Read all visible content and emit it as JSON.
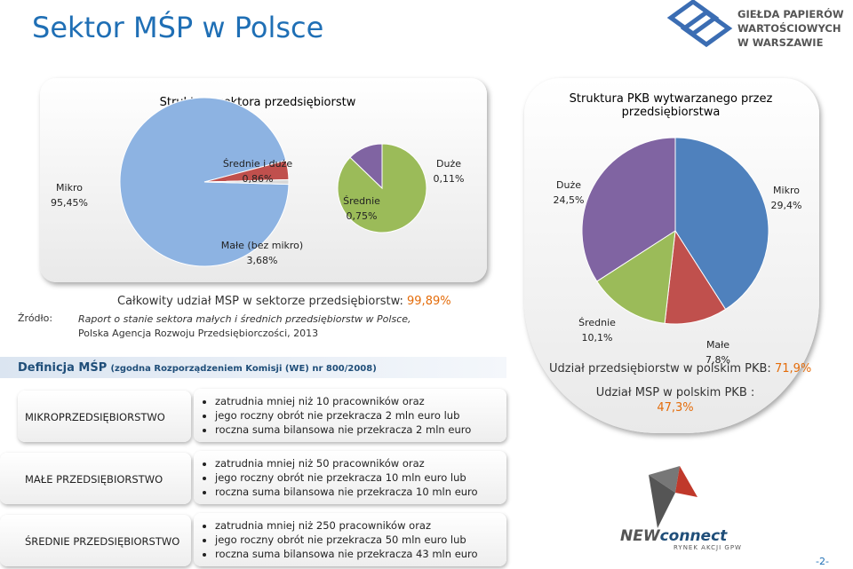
{
  "header": {
    "title": "Sektor MŚP w Polsce",
    "logo_lines": [
      "GIEŁDA PAPIERÓW",
      "WARTOŚCIOWYCH",
      "W WARSZAWIE"
    ]
  },
  "chart_data": [
    {
      "type": "pie",
      "title": "Struktura sektora przedsiębiorstw",
      "categories": [
        "Mikro",
        "Małe (bez mikro)",
        "Średnie i duże"
      ],
      "values": [
        95.45,
        3.68,
        0.86
      ],
      "value_labels": [
        "95,45%",
        "3,68%",
        "0,86%"
      ],
      "colors": [
        "#8db3e2",
        "#c0504d",
        "#d9d9d9"
      ],
      "breakdown": {
        "categories": [
          "Średnie",
          "Duże"
        ],
        "values": [
          0.75,
          0.11
        ],
        "value_labels": [
          "0,75%",
          "0,11%"
        ],
        "colors": [
          "#9bbb59",
          "#8064a2"
        ]
      }
    },
    {
      "type": "pie",
      "title": "Struktura PKB wytwarzanego przez przedsiębiorstwa",
      "categories": [
        "Mikro",
        "Małe",
        "Średnie",
        "Duże"
      ],
      "values": [
        29.4,
        7.8,
        10.1,
        24.5
      ],
      "value_labels": [
        "29,4%",
        "7,8%",
        "10,1%",
        "24,5%"
      ],
      "colors": [
        "#4f81bd",
        "#c0504d",
        "#9bbb59",
        "#8064a2"
      ]
    }
  ],
  "summary": {
    "label": "Całkowity udział MSP w sektorze przedsiębiorstw: ",
    "value": "99,89%"
  },
  "source": {
    "label": "Źródło:",
    "lines": [
      "Raport o stanie sektora małych i średnich przedsiębiorstw w Polsce,",
      "Polska Agencja Rozwoju Przedsiębiorczości, 2013"
    ]
  },
  "gdp": {
    "share_label": "Udział przedsiębiorstw w polskim PKB: ",
    "share_value": "71,9%",
    "msp_label": "Udział MSP w polskim PKB :",
    "msp_value": "47,3%"
  },
  "definition": {
    "title": "Definicja MŚP",
    "subtitle": "(zgodna Rozporządzeniem Komisji (WE) nr 800/2008)",
    "rows": [
      {
        "name": "MIKROPRZEDSIĘBIORSTWO",
        "points": [
          "zatrudnia mniej niż 10 pracowników oraz",
          "jego roczny obrót nie przekracza 2 mln euro lub",
          "roczna suma bilansowa nie przekracza 2 mln euro"
        ]
      },
      {
        "name": "MAŁE PRZEDSIĘBIORSTWO",
        "points": [
          "zatrudnia mniej niż 50 pracowników oraz",
          "jego roczny obrót nie przekracza 10 mln euro lub",
          "roczna suma bilansowa nie przekracza 10 mln euro"
        ]
      },
      {
        "name": "ŚREDNIE PRZEDSIĘBIORSTWO",
        "points": [
          "zatrudnia mniej niż 250 pracowników oraz",
          "jego roczny obrót nie przekracza 50 mln euro lub",
          "roczna suma bilansowa nie przekracza 43 mln euro"
        ]
      }
    ]
  },
  "footer": {
    "brand_new": "NEW",
    "brand_connect": "connect",
    "brand_sub": "RYNEK AKCJI GPW",
    "page": "-2-"
  }
}
